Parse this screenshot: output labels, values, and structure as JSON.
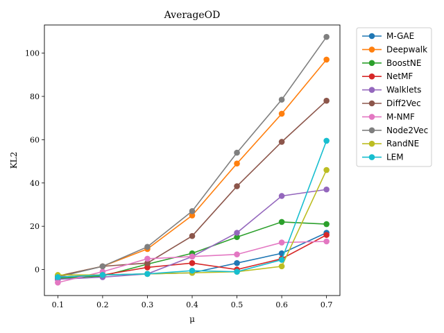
{
  "chart_data": {
    "type": "line",
    "title": "AverageOD",
    "xlabel": "μ",
    "ylabel": "KL2",
    "x": [
      0.1,
      0.2,
      0.3,
      0.4,
      0.5,
      0.6,
      0.7
    ],
    "x_ticks": [
      "0.1",
      "0.2",
      "0.3",
      "0.4",
      "0.5",
      "0.6",
      "0.7"
    ],
    "y_ticks": [
      0,
      20,
      40,
      60,
      80,
      100
    ],
    "xlim": [
      0.07,
      0.73
    ],
    "ylim": [
      -12,
      113
    ],
    "grid": false,
    "legend_position": "outside-right",
    "series": [
      {
        "name": "M-GAE",
        "color": "#1f77b4",
        "values": [
          -4.5,
          -2.5,
          -2,
          -1.5,
          3,
          7.5,
          17
        ]
      },
      {
        "name": "Deepwalk",
        "color": "#ff7f0e",
        "values": [
          -3,
          1.5,
          9.5,
          25,
          49,
          72,
          97
        ]
      },
      {
        "name": "BoostNE",
        "color": "#2ca02c",
        "values": [
          -4,
          -3,
          2.5,
          7.5,
          15,
          22,
          21
        ]
      },
      {
        "name": "NetMF",
        "color": "#d62728",
        "values": [
          -3.5,
          -2.5,
          1,
          3,
          0,
          5,
          16
        ]
      },
      {
        "name": "Walklets",
        "color": "#9467bd",
        "values": [
          -4.5,
          -3.5,
          -2,
          6,
          17,
          34,
          37
        ]
      },
      {
        "name": "Diff2Vec",
        "color": "#8c564b",
        "values": [
          -3,
          1.5,
          3,
          15.5,
          38.5,
          59,
          78
        ]
      },
      {
        "name": "M-NMF",
        "color": "#e377c2",
        "values": [
          -6,
          -1,
          5,
          6,
          7,
          12.5,
          13
        ]
      },
      {
        "name": "Node2Vec",
        "color": "#7f7f7f",
        "values": [
          -3.5,
          1.5,
          10.5,
          27,
          54,
          78.5,
          107.5
        ]
      },
      {
        "name": "RandNE",
        "color": "#bcbd22",
        "values": [
          -2.5,
          -2.5,
          -2,
          -1.5,
          -1,
          1.5,
          46
        ]
      },
      {
        "name": "LEM",
        "color": "#17becf",
        "values": [
          -3.5,
          -2.5,
          -2,
          -0.5,
          -1,
          4.5,
          59.5
        ]
      }
    ]
  }
}
